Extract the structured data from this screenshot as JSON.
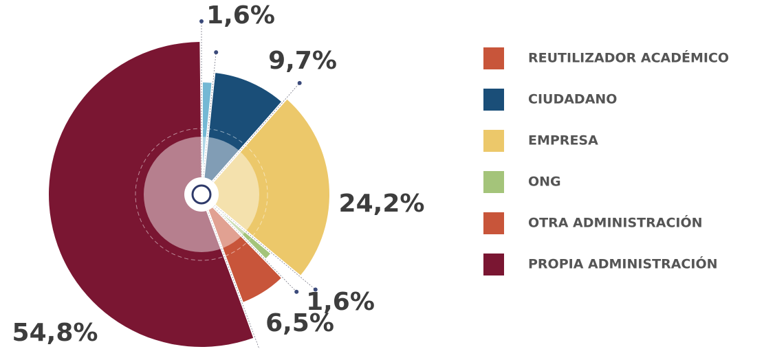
{
  "chart_data": {
    "type": "pie",
    "categories": [
      "REUTILIZADOR ACADÉMICO",
      "CIUDADANO",
      "EMPRESA",
      "ONG",
      "OTRA ADMINISTRACIÓN",
      "PROPIA ADMINISTRACIÓN"
    ],
    "values": [
      1.6,
      9.7,
      24.2,
      1.6,
      6.5,
      54.8
    ],
    "value_labels": [
      "1,6%",
      "9,7%",
      "24,2%",
      "1,6%",
      "6,5%",
      "54,8%"
    ],
    "colors": [
      "#74b8d4",
      "#1a4e78",
      "#ecc86a",
      "#a4c47a",
      "#c8553a",
      "#7a1632"
    ],
    "legend_colors": [
      "#c8553a",
      "#1a4e78",
      "#ecc86a",
      "#a4c47a",
      "#c8553a",
      "#7a1632"
    ]
  }
}
